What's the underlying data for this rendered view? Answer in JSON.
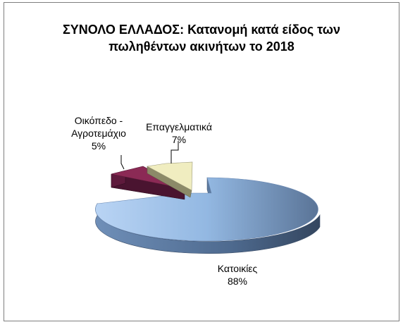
{
  "chart_data": {
    "type": "pie",
    "style": "3d-exploded",
    "title_lines": [
      "ΣΥΝΟΛΟ ΕΛΛΑΔΟΣ: Κατανομή κατά είδος των",
      "πωληθέντων ακινήτων το 2018"
    ],
    "slices": [
      {
        "label": "Κατοικίες",
        "percent_label": "88%",
        "value": 88,
        "color": "#9cc2ee"
      },
      {
        "label": "Οικόπεδο - Αγροτεμάχιο",
        "label_lines": [
          "Οικόπεδο -",
          "Αγροτεμάχιο"
        ],
        "percent_label": "5%",
        "value": 5,
        "color": "#8b2a55"
      },
      {
        "label": "Επαγγελματικά",
        "percent_label": "7%",
        "value": 7,
        "color": "#f0edc0"
      }
    ],
    "legend": "none"
  }
}
